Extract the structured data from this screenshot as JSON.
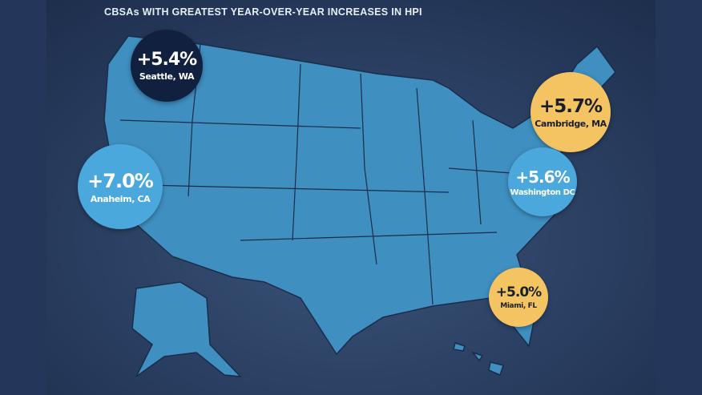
{
  "title": "CBSAs WITH GREATEST YEAR-OVER-YEAR INCREASES IN HPI",
  "colors": {
    "map": "#3f8fc0",
    "dark": "#11203f",
    "blue": "#4aa8dc",
    "gold": "#f4c463"
  },
  "markers": [
    {
      "pct": "+5.4%",
      "city": "Seattle, WA"
    },
    {
      "pct": "+7.0%",
      "city": "Anaheim, CA"
    },
    {
      "pct": "+5.7%",
      "city": "Cambridge, MA"
    },
    {
      "pct": "+5.6%",
      "city": "Washington DC"
    },
    {
      "pct": "+5.0%",
      "city": "Miami, FL"
    }
  ]
}
